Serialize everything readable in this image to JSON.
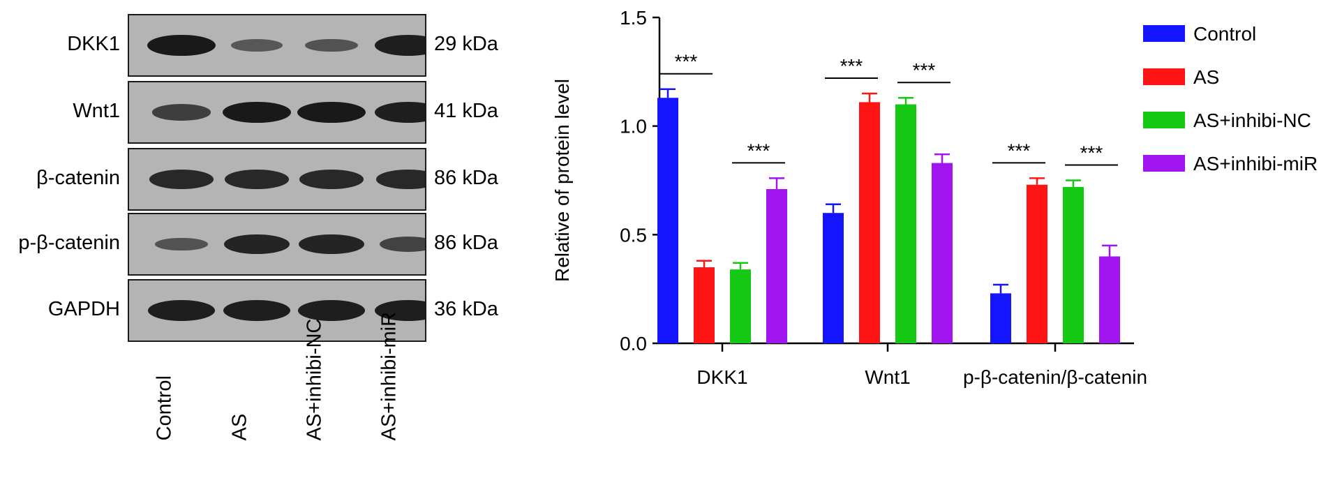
{
  "blot": {
    "rows": [
      {
        "label": "DKK1",
        "kda": "29 kDa",
        "intensity": [
          0.95,
          0.35,
          0.4,
          0.9
        ]
      },
      {
        "label": "Wnt1",
        "kda": "41 kDa",
        "intensity": [
          0.6,
          0.95,
          0.95,
          0.9
        ]
      },
      {
        "label": "β-catenin",
        "kda": "86 kDa",
        "intensity": [
          0.8,
          0.8,
          0.8,
          0.8
        ]
      },
      {
        "label": "p-β-catenin",
        "kda": "86 kDa",
        "intensity": [
          0.4,
          0.85,
          0.85,
          0.55
        ]
      },
      {
        "label": "GAPDH",
        "kda": "36 kDa",
        "intensity": [
          0.9,
          0.9,
          0.9,
          0.9
        ]
      }
    ],
    "lanes": [
      "Control",
      "AS",
      "AS+inhibi-NC",
      "AS+inhibi-miR"
    ]
  },
  "chart_data": {
    "type": "bar",
    "title": "",
    "xlabel": "",
    "ylabel": "Relative of protein level",
    "ylim": [
      0,
      1.5
    ],
    "yticks": [
      "0.0",
      "0.5",
      "1.0",
      "1.5"
    ],
    "categories": [
      "DKK1",
      "Wnt1",
      "p-β-catenin/β-catenin"
    ],
    "series": [
      {
        "name": "Control",
        "color": "#1414ff",
        "values": [
          1.13,
          0.6,
          0.23
        ],
        "errors": [
          0.04,
          0.04,
          0.04
        ]
      },
      {
        "name": "AS",
        "color": "#ff1414",
        "values": [
          0.35,
          1.11,
          0.73
        ],
        "errors": [
          0.03,
          0.04,
          0.03
        ]
      },
      {
        "name": "AS+inhibi-NC",
        "color": "#14c814",
        "values": [
          0.34,
          1.1,
          0.72
        ],
        "errors": [
          0.03,
          0.03,
          0.03
        ]
      },
      {
        "name": "AS+inhibi-miR",
        "color": "#a014f0",
        "values": [
          0.71,
          0.83,
          0.4
        ],
        "errors": [
          0.05,
          0.04,
          0.05
        ]
      }
    ],
    "significance": [
      {
        "category": 0,
        "from": 0,
        "to": 1,
        "label": "***"
      },
      {
        "category": 0,
        "from": 2,
        "to": 3,
        "label": "***"
      },
      {
        "category": 1,
        "from": 0,
        "to": 1,
        "label": "***"
      },
      {
        "category": 1,
        "from": 2,
        "to": 3,
        "label": "***"
      },
      {
        "category": 2,
        "from": 0,
        "to": 1,
        "label": "***"
      },
      {
        "category": 2,
        "from": 2,
        "to": 3,
        "label": "***"
      }
    ],
    "legend_position": "right"
  }
}
